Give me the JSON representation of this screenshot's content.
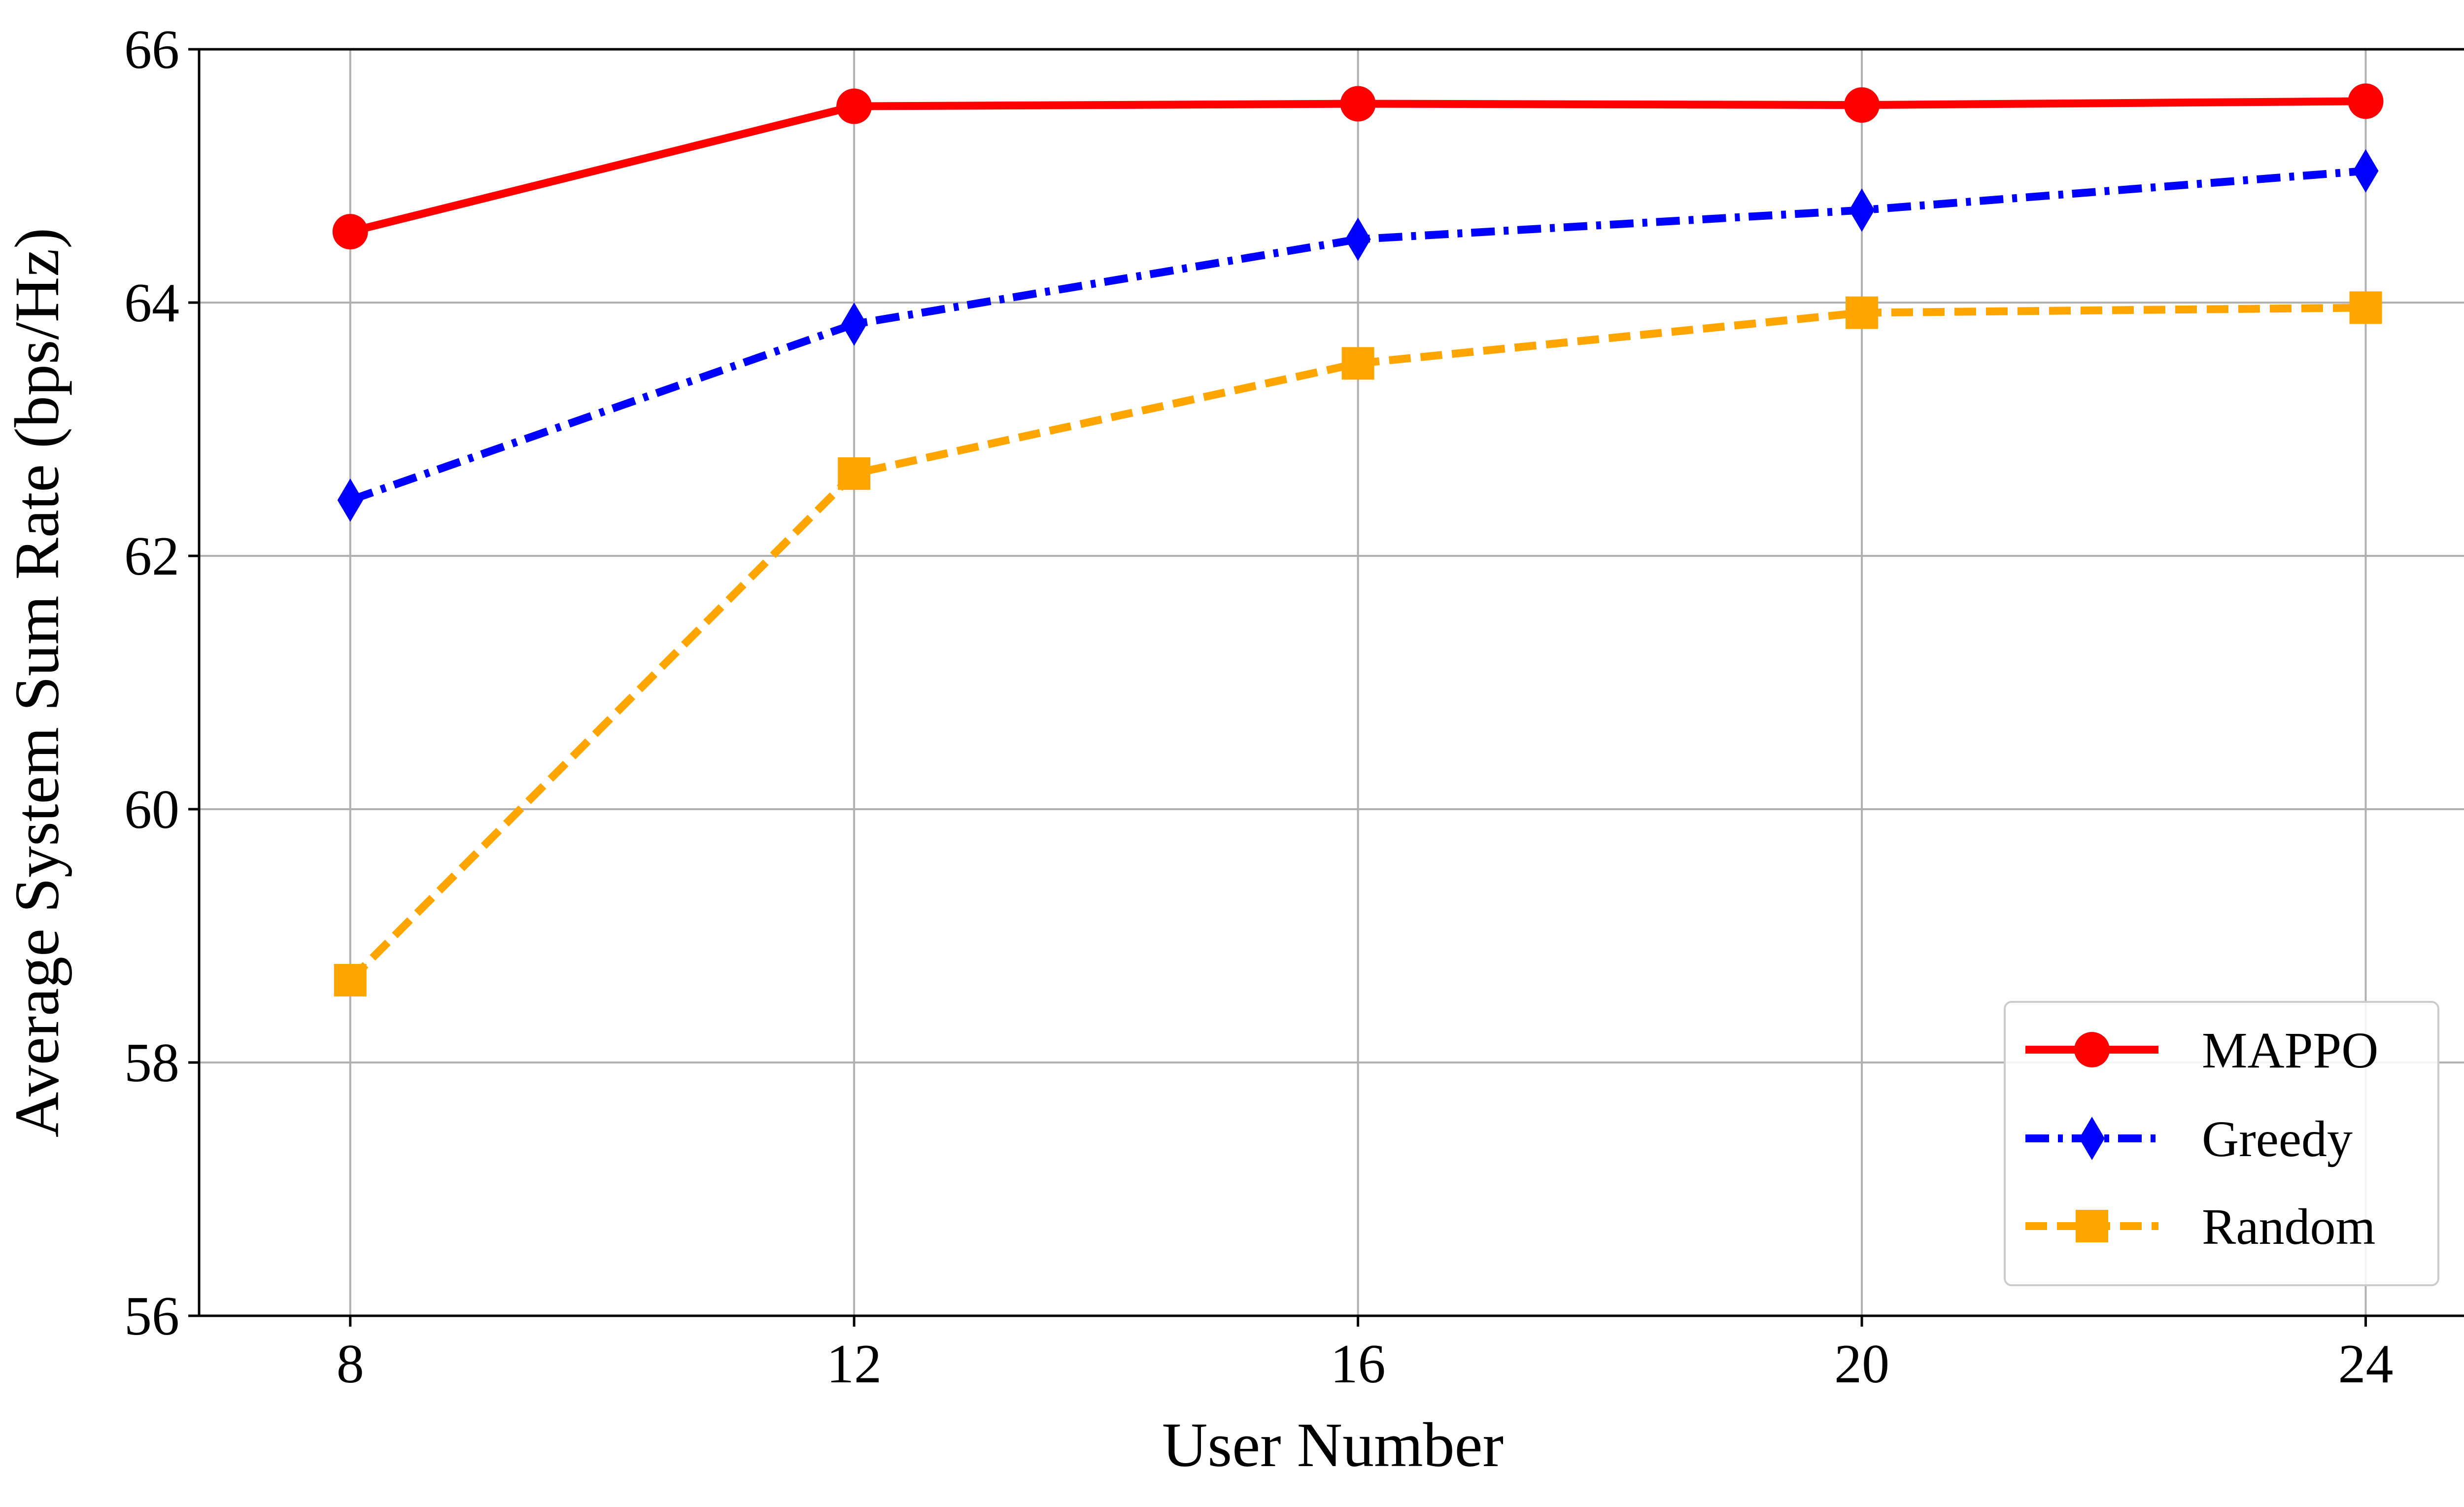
{
  "chart_data": {
    "type": "line",
    "title": "",
    "xlabel": "User Number",
    "ylabel": "Average System Sum Rate (bps/Hz)",
    "x": [
      8,
      12,
      16,
      20,
      24
    ],
    "xticks": [
      "8",
      "12",
      "16",
      "20",
      "24"
    ],
    "yticks": [
      "56",
      "58",
      "60",
      "62",
      "64",
      "66"
    ],
    "xlim": [
      6.8,
      24.8
    ],
    "ylim": [
      56,
      66
    ],
    "grid": true,
    "legend_position": "lower-right",
    "series": [
      {
        "name": "MAPPO",
        "color": "#ff0000",
        "line_style": "solid",
        "marker": "circle",
        "values": [
          64.56,
          65.55,
          65.57,
          65.56,
          65.59
        ]
      },
      {
        "name": "Greedy",
        "color": "#0000ff",
        "line_style": "dash-dot",
        "marker": "thin-diamond",
        "values": [
          62.44,
          63.83,
          64.5,
          64.73,
          65.04
        ]
      },
      {
        "name": "Random",
        "color": "#ffa500",
        "line_style": "dashed",
        "marker": "square",
        "values": [
          58.65,
          62.65,
          63.52,
          63.92,
          63.96
        ]
      }
    ]
  }
}
